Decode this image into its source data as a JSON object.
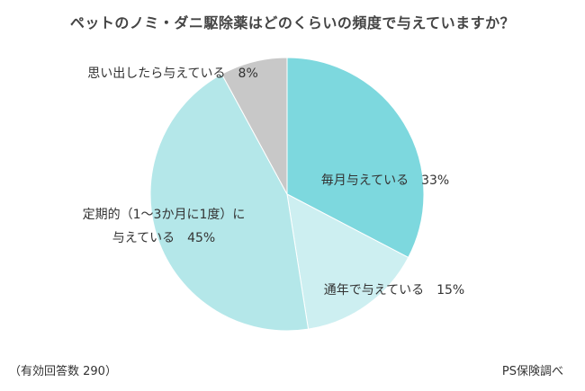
{
  "chart_data": {
    "type": "pie",
    "title": "ペットのノミ・ダニ駆除薬はどのくらいの頻度で与えていますか？",
    "slices": [
      {
        "label_lines": [
          "毎月与えている　33%"
        ],
        "value": 33,
        "color": "#7dd8de"
      },
      {
        "label_lines": [
          "通年で与えている　15%"
        ],
        "value": 15,
        "color": "#cdeff1"
      },
      {
        "label_lines": [
          "定期的（1〜3か月に1度）に",
          "与えている　45%"
        ],
        "value": 45,
        "color": "#b4e7e9"
      },
      {
        "label_lines": [
          "思い出したら与えている　8%"
        ],
        "value": 8,
        "color": "#c8c8c8"
      }
    ],
    "start_angle_deg": 0,
    "direction": "clockwise"
  },
  "footnotes": {
    "respondents": "（有効回答数 290）",
    "source": "PS保険調べ"
  }
}
